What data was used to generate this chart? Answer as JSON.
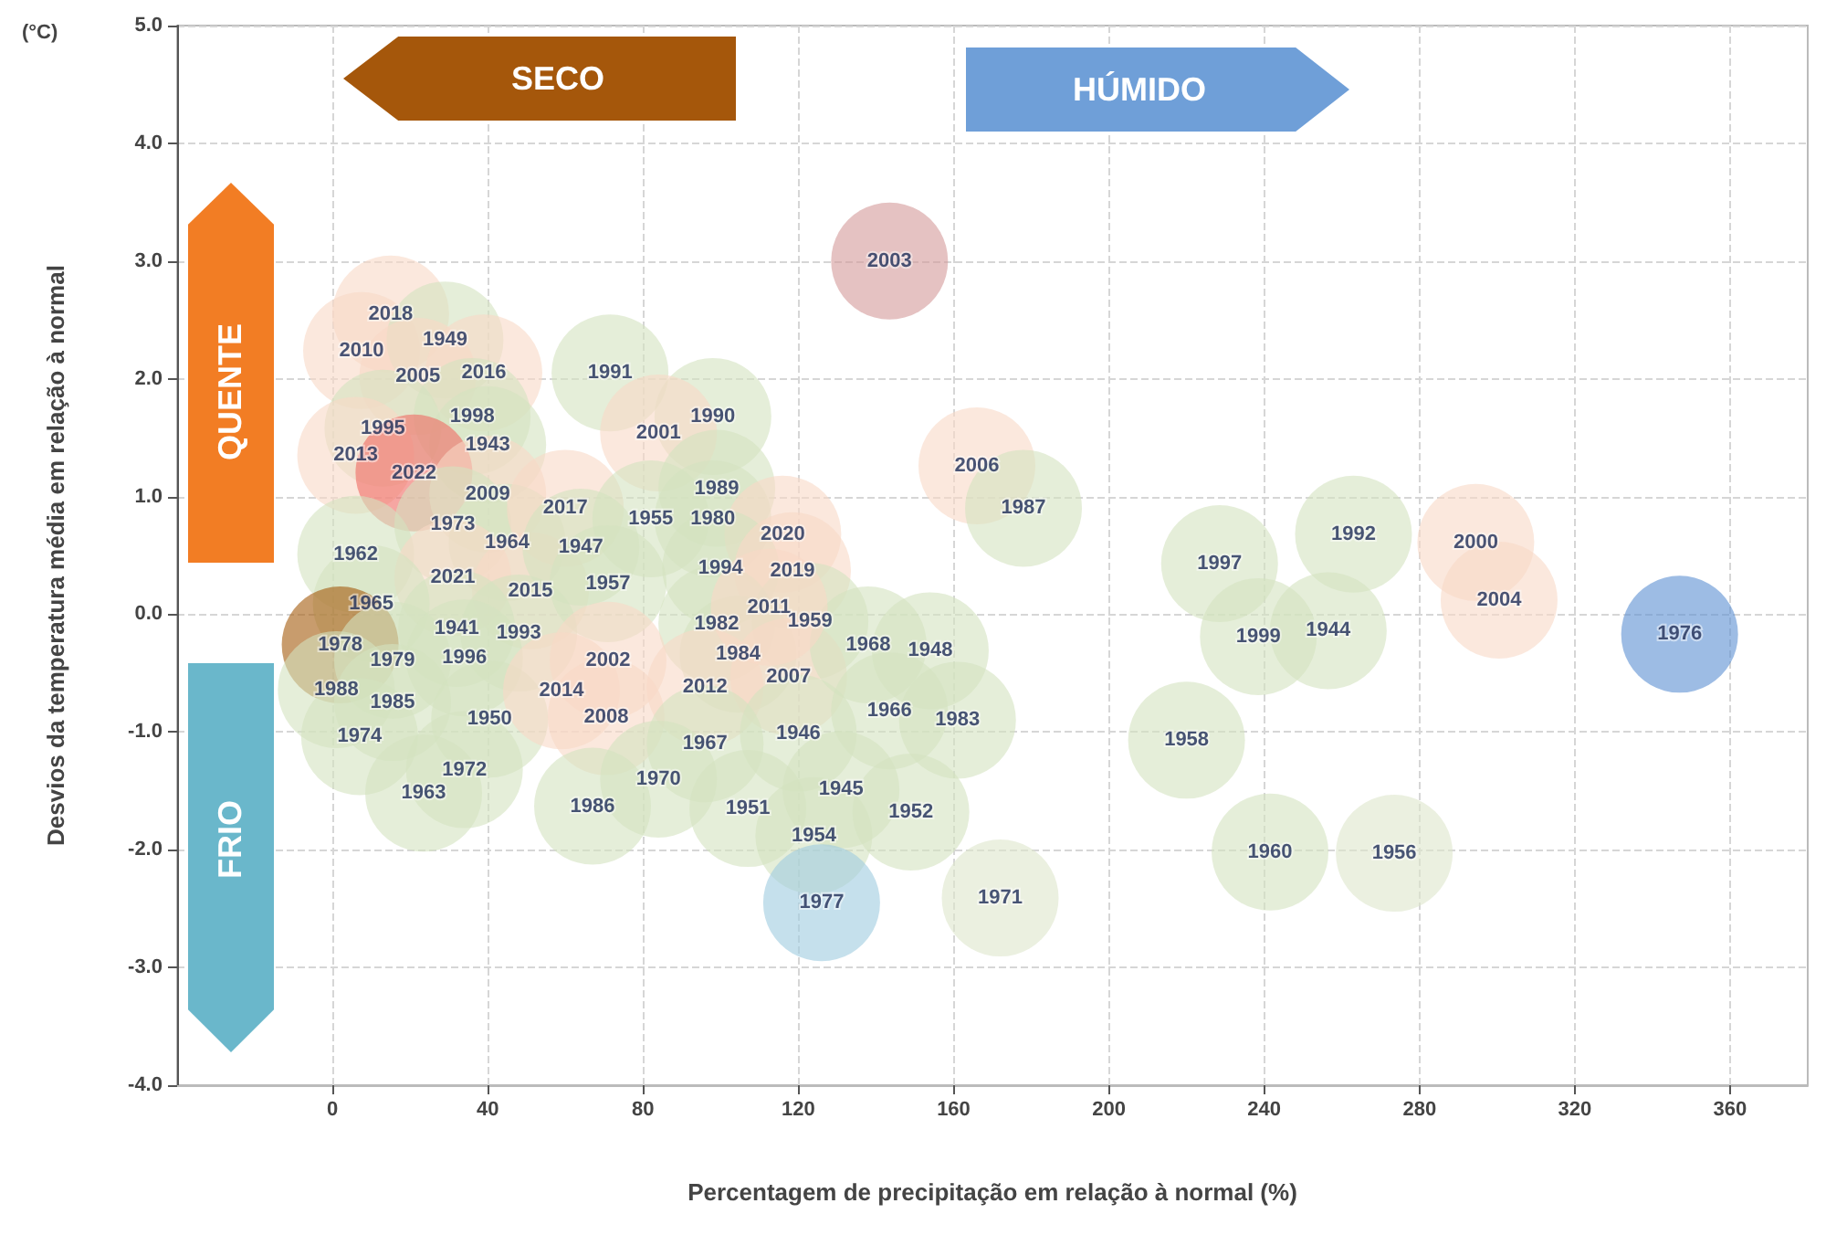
{
  "chart_data": {
    "type": "scatter",
    "xlabel": "Percentagem de precipitação em relação à normal (%)",
    "ylabel": "Desvios da temperatura média em relação à normal",
    "annotations": [
      "(°C)",
      "SECO",
      "HÚMIDO",
      "QUENTE",
      "FRIO",
      {
        "text": "2018",
        "x": 15,
        "y": 2.55
      },
      {
        "text": "2010",
        "x": 7.5,
        "y": 2.24
      },
      {
        "text": "1949",
        "x": 29,
        "y": 2.33
      },
      {
        "text": "2005",
        "x": 22,
        "y": 2.02
      },
      {
        "text": "2016",
        "x": 39,
        "y": 2.05
      },
      {
        "text": "1995",
        "x": 13,
        "y": 1.58
      },
      {
        "text": "1998",
        "x": 36,
        "y": 1.68
      },
      {
        "text": "1943",
        "x": 40,
        "y": 1.44
      },
      {
        "text": "2013",
        "x": 6,
        "y": 1.35
      },
      {
        "text": "2022",
        "x": 21,
        "y": 1.2
      },
      {
        "text": "2009",
        "x": 40,
        "y": 1.02
      },
      {
        "text": "1973",
        "x": 31,
        "y": 0.76
      },
      {
        "text": "1964",
        "x": 45,
        "y": 0.61
      },
      {
        "text": "1962",
        "x": 6,
        "y": 0.51
      },
      {
        "text": "2021",
        "x": 31,
        "y": 0.31
      },
      {
        "text": "2015",
        "x": 51,
        "y": 0.2
      },
      {
        "text": "1965",
        "x": 10,
        "y": 0.09
      },
      {
        "text": "1978",
        "x": 2,
        "y": -0.26
      },
      {
        "text": "1941",
        "x": 32,
        "y": -0.12
      },
      {
        "text": "1993",
        "x": 48,
        "y": -0.16
      },
      {
        "text": "1979",
        "x": 15.5,
        "y": -0.39
      },
      {
        "text": "1996",
        "x": 34,
        "y": -0.37
      },
      {
        "text": "1988",
        "x": 1,
        "y": -0.64
      },
      {
        "text": "1985",
        "x": 15.5,
        "y": -0.75
      },
      {
        "text": "1950",
        "x": 40.5,
        "y": -0.89
      },
      {
        "text": "1974",
        "x": 7,
        "y": -1.04
      },
      {
        "text": "1972",
        "x": 34,
        "y": -1.32
      },
      {
        "text": "1963",
        "x": 23.5,
        "y": -1.52
      },
      {
        "text": "1991",
        "x": 71.5,
        "y": 2.05
      },
      {
        "text": "1990",
        "x": 98,
        "y": 1.68
      },
      {
        "text": "2001",
        "x": 84,
        "y": 1.54
      },
      {
        "text": "1989",
        "x": 99,
        "y": 1.07
      },
      {
        "text": "2017",
        "x": 60,
        "y": 0.9
      },
      {
        "text": "1955",
        "x": 82,
        "y": 0.81
      },
      {
        "text": "1980",
        "x": 98,
        "y": 0.81
      },
      {
        "text": "2020",
        "x": 116,
        "y": 0.68
      },
      {
        "text": "1947",
        "x": 64,
        "y": 0.57
      },
      {
        "text": "1994",
        "x": 100,
        "y": 0.39
      },
      {
        "text": "2019",
        "x": 118.5,
        "y": 0.37
      },
      {
        "text": "1957",
        "x": 71,
        "y": 0.26
      },
      {
        "text": "2011",
        "x": 112.5,
        "y": 0.06
      },
      {
        "text": "1982",
        "x": 99,
        "y": -0.08
      },
      {
        "text": "1959",
        "x": 123,
        "y": -0.06
      },
      {
        "text": "1984",
        "x": 104.5,
        "y": -0.34
      },
      {
        "text": "2002",
        "x": 71,
        "y": -0.39
      },
      {
        "text": "2007",
        "x": 117.5,
        "y": -0.53
      },
      {
        "text": "2014",
        "x": 59,
        "y": -0.65
      },
      {
        "text": "2012",
        "x": 96,
        "y": -0.62
      },
      {
        "text": "2008",
        "x": 70.5,
        "y": -0.87
      },
      {
        "text": "1946",
        "x": 120,
        "y": -1.01
      },
      {
        "text": "1967",
        "x": 96,
        "y": -1.1
      },
      {
        "text": "1970",
        "x": 84,
        "y": -1.4
      },
      {
        "text": "1986",
        "x": 67,
        "y": -1.63
      },
      {
        "text": "1951",
        "x": 107,
        "y": -1.65
      },
      {
        "text": "1954",
        "x": 124,
        "y": -1.88
      },
      {
        "text": "2003",
        "x": 143.5,
        "y": 3.0
      },
      {
        "text": "2006",
        "x": 166,
        "y": 1.26
      },
      {
        "text": "1987",
        "x": 178,
        "y": 0.9
      },
      {
        "text": "1968",
        "x": 138,
        "y": -0.26
      },
      {
        "text": "1948",
        "x": 154,
        "y": -0.31
      },
      {
        "text": "1966",
        "x": 143.5,
        "y": -0.82
      },
      {
        "text": "1983",
        "x": 161,
        "y": -0.9
      },
      {
        "text": "1945",
        "x": 131,
        "y": -1.49
      },
      {
        "text": "1952",
        "x": 149,
        "y": -1.68
      },
      {
        "text": "1977",
        "x": 126,
        "y": -2.45
      },
      {
        "text": "1971",
        "x": 172,
        "y": -2.41
      },
      {
        "text": "1997",
        "x": 228.5,
        "y": 0.43
      },
      {
        "text": "1992",
        "x": 263,
        "y": 0.68
      },
      {
        "text": "2000",
        "x": 294.5,
        "y": 0.61
      },
      {
        "text": "2004",
        "x": 300.5,
        "y": 0.12
      },
      {
        "text": "1999",
        "x": 238.5,
        "y": -0.19
      },
      {
        "text": "1944",
        "x": 256.5,
        "y": -0.14
      },
      {
        "text": "1976",
        "x": 347,
        "y": -0.17
      },
      {
        "text": "1958",
        "x": 220,
        "y": -1.07
      },
      {
        "text": "1960",
        "x": 241.5,
        "y": -2.02
      },
      {
        "text": "1956",
        "x": 273.5,
        "y": -2.03
      }
    ],
    "xlim": [
      -40,
      380
    ],
    "xticks": [
      0,
      40,
      80,
      120,
      160,
      200,
      240,
      280,
      320,
      360
    ],
    "ylim": [
      -4,
      5
    ],
    "yticks": [
      {
        "value": -4,
        "label": "-4.0"
      },
      {
        "value": -3,
        "label": "-3.0"
      },
      {
        "value": -2,
        "label": "-2.0"
      },
      {
        "value": -1,
        "label": "-1.0"
      },
      {
        "value": 0,
        "label": "0.0"
      },
      {
        "value": 1,
        "label": "1.0"
      },
      {
        "value": 2,
        "label": "2.0"
      },
      {
        "value": 3,
        "label": "3.0"
      },
      {
        "value": 4,
        "label": "4.0"
      },
      {
        "value": 5,
        "label": "5.0"
      }
    ],
    "grid": true,
    "marker": "circle",
    "x": [
      15,
      7.5,
      29,
      22,
      39,
      13,
      36,
      40,
      6,
      21,
      40,
      31,
      45,
      6,
      31,
      51,
      10,
      2,
      32,
      48,
      15.5,
      34,
      1,
      15.5,
      40.5,
      7,
      34,
      23.5,
      71.5,
      98,
      84,
      99,
      60,
      82,
      98,
      116,
      64,
      100,
      118.5,
      71,
      99,
      123,
      104.5,
      71,
      117.5,
      59,
      96,
      70.5,
      120,
      96,
      84,
      67,
      107,
      124,
      143.5,
      166,
      178,
      138,
      154,
      143.5,
      161,
      131,
      149,
      126,
      172,
      228.5,
      263,
      294.5,
      300.5,
      238.5,
      256.5,
      347,
      220,
      241.5,
      273.5,
      112.5
    ],
    "values": [
      2.55,
      2.24,
      2.33,
      2.02,
      2.05,
      1.58,
      1.68,
      1.44,
      1.35,
      1.2,
      1.02,
      0.76,
      0.61,
      0.51,
      0.31,
      0.2,
      0.09,
      -0.26,
      -0.12,
      -0.16,
      -0.39,
      -0.37,
      -0.64,
      -0.75,
      -0.89,
      -1.04,
      -1.32,
      -1.52,
      2.05,
      1.68,
      1.54,
      1.07,
      0.9,
      0.81,
      0.81,
      0.68,
      0.57,
      0.39,
      0.37,
      0.26,
      -0.08,
      -0.06,
      -0.34,
      -0.39,
      -0.53,
      -0.65,
      -0.62,
      -0.87,
      -1.01,
      -1.1,
      -1.4,
      -1.63,
      -1.65,
      -1.88,
      3.0,
      1.26,
      0.9,
      -0.26,
      -0.31,
      -0.82,
      -0.9,
      -1.49,
      -1.68,
      -2.45,
      -2.41,
      0.43,
      0.68,
      0.61,
      0.12,
      -0.19,
      -0.14,
      -0.17,
      -1.07,
      -2.02,
      -2.03,
      0.06
    ],
    "colors": [
      "#f9d9c6",
      "#f9d9c6",
      "#d4e2c0",
      "#f9d9c6",
      "#f9d9c6",
      "#d4e2c0",
      "#d4e2c0",
      "#d4e2c0",
      "#f9d9c6",
      "#f06a64",
      "#f9d9c6",
      "#d4e2c0",
      "#d4e2c0",
      "#d4e2c0",
      "#f9d9c6",
      "#f9d9c6",
      "#d4e2c0",
      "#a35a0c",
      "#d4e2c0",
      "#d4e2c0",
      "#d4e2c0",
      "#d4e2c0",
      "#d4e2c0",
      "#d4e2c0",
      "#d4e2c0",
      "#d4e2c0",
      "#d4e2c0",
      "#d4e2c0",
      "#d4e2c0",
      "#d4e2c0",
      "#f9d9c6",
      "#d4e2c0",
      "#f9d9c6",
      "#d4e2c0",
      "#d4e2c0",
      "#f9d9c6",
      "#d4e2c0",
      "#d4e2c0",
      "#f9d9c6",
      "#d4e2c0",
      "#d4e2c0",
      "#d4e2c0",
      "#d4e2c0",
      "#f9d9c6",
      "#f9d9c6",
      "#f9d9c6",
      "#f9d9c6",
      "#f9d9c6",
      "#d4e2c0",
      "#d4e2c0",
      "#d4e2c0",
      "#d4e2c0",
      "#d4e2c0",
      "#d4e2c0",
      "#d49a9a",
      "#f9d9c6",
      "#d4e2c0",
      "#d4e2c0",
      "#d4e2c0",
      "#d4e2c0",
      "#d4e2c0",
      "#d4e2c0",
      "#d4e2c0",
      "#9fcbe0",
      "#dde6cc",
      "#d4e2c0",
      "#d4e2c0",
      "#f9d9c6",
      "#f9d9c6",
      "#d4e2c0",
      "#d4e2c0",
      "#5b8fd2",
      "#d4e2c0",
      "#d4e2c0",
      "#dde6cc",
      "#f9d9c6"
    ]
  }
}
